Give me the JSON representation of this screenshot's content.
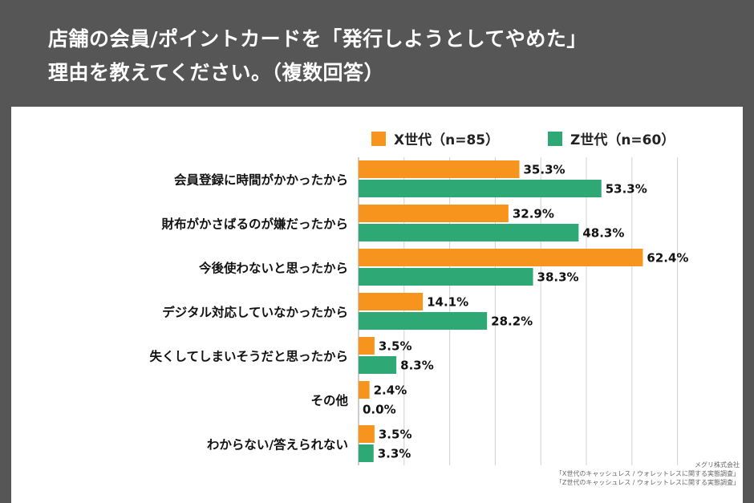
{
  "title": {
    "line1": "店舗の会員/ポイントカードを「発行しようとしてやめた」",
    "line2": "理由を教えてください。（複数回答）"
  },
  "colors": {
    "x_gen": "#F7941D",
    "z_gen": "#2EA874",
    "background": "#565656",
    "panel": "#FFFFFF",
    "grid": "#D0D0D0"
  },
  "chart_data": {
    "type": "bar",
    "orientation": "horizontal",
    "categories": [
      "会員登録に時間がかかったから",
      "財布がかさばるのが嫌だったから",
      "今後使わないと思ったから",
      "デジタル対応していなかったから",
      "失くしてしまいそうだと思ったから",
      "その他",
      "わからない/答えられない"
    ],
    "series": [
      {
        "name": "X世代（n=85）",
        "values": [
          35.3,
          32.9,
          62.4,
          14.1,
          3.5,
          2.4,
          3.5
        ]
      },
      {
        "name": "Z世代（n=60）",
        "values": [
          53.3,
          48.3,
          38.3,
          28.2,
          8.3,
          0.0,
          3.3
        ]
      }
    ],
    "value_labels": {
      "X世代（n=85）": [
        "35.3%",
        "32.9%",
        "62.4%",
        "14.1%",
        "3.5%",
        "2.4%",
        "3.5%"
      ],
      "Z世代（n=60）": [
        "53.3%",
        "48.3%",
        "38.3%",
        "28.2%",
        "8.3%",
        "0.0%",
        "3.3%"
      ]
    },
    "xlim": [
      0,
      70
    ],
    "grid": true,
    "legend": "top-right"
  },
  "source": {
    "company": "メグリ株式会社",
    "ref1": "「X世代のキャッシュレス / ウォレットレスに関する実態調査」",
    "ref2": "「Z世代のキャッシュレス / ウォレットレスに関する実態調査」"
  }
}
